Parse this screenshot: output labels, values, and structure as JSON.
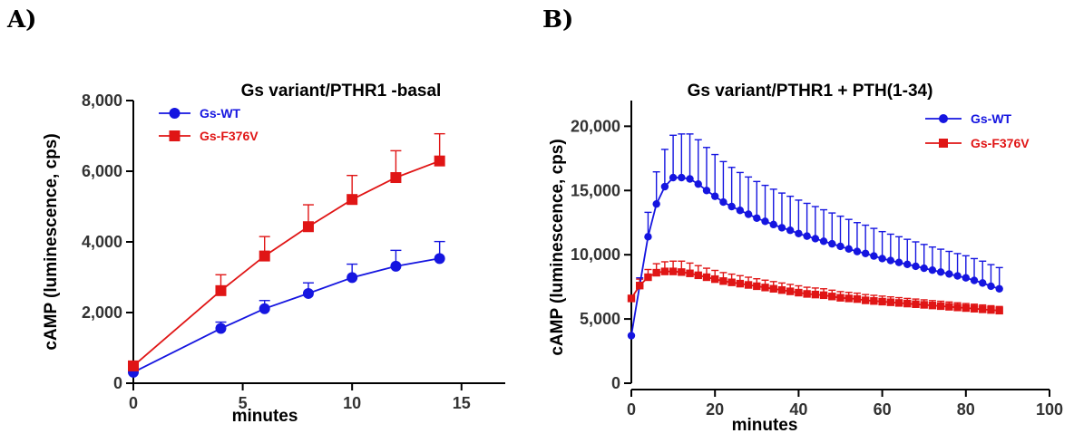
{
  "panels": [
    {
      "label": "A)"
    },
    {
      "label": "B)"
    }
  ],
  "chart_data": [
    {
      "type": "line",
      "title": "Gs variant/PTHR1 -basal",
      "xlabel": "minutes",
      "ylabel": "cAMP (luminescence, cps)",
      "xlim": [
        0,
        17
      ],
      "ylim": [
        0,
        8000
      ],
      "xticks": [
        0,
        5,
        10,
        15
      ],
      "xtick_labels": [
        "0",
        "5",
        "10",
        "15"
      ],
      "yticks": [
        0,
        2000,
        4000,
        6000,
        8000
      ],
      "ytick_labels": [
        "0",
        "2,000",
        "4,000",
        "6,000",
        "8,000"
      ],
      "legend_position": "top-left",
      "grid": false,
      "series": [
        {
          "name": "Gs-WT",
          "color": "#1515e0",
          "marker": "circle",
          "x": [
            0,
            4,
            6,
            8,
            10,
            12,
            14
          ],
          "y": [
            310,
            1550,
            2110,
            2540,
            2990,
            3310,
            3530
          ],
          "err": [
            0,
            180,
            230,
            300,
            380,
            450,
            480
          ]
        },
        {
          "name": "Gs-F376V",
          "color": "#e01515",
          "marker": "square",
          "x": [
            0,
            4,
            6,
            8,
            10,
            12,
            14
          ],
          "y": [
            490,
            2620,
            3600,
            4430,
            5200,
            5820,
            6290
          ],
          "err": [
            0,
            450,
            550,
            620,
            680,
            760,
            770
          ]
        }
      ]
    },
    {
      "type": "line",
      "title": "Gs variant/PTHR1  + PTH(1-34)",
      "xlabel": "minutes",
      "ylabel": "cAMP (luminescence, cps)",
      "xlim": [
        0,
        100
      ],
      "ylim": [
        0,
        22000
      ],
      "xticks": [
        0,
        20,
        40,
        60,
        80,
        100
      ],
      "xtick_labels": [
        "0",
        "20",
        "40",
        "60",
        "80",
        "100"
      ],
      "yticks": [
        0,
        5000,
        10000,
        15000,
        20000
      ],
      "ytick_labels": [
        "0",
        "5,000",
        "10,000",
        "15,000",
        "20,000"
      ],
      "legend_position": "top-right",
      "grid": false,
      "series": [
        {
          "name": "Gs-WT",
          "color": "#1515e0",
          "marker": "circle",
          "x": [
            0,
            2,
            4,
            6,
            8,
            10,
            12,
            14,
            16,
            18,
            20,
            22,
            24,
            26,
            28,
            30,
            32,
            34,
            36,
            38,
            40,
            42,
            44,
            46,
            48,
            50,
            52,
            54,
            56,
            58,
            60,
            62,
            64,
            66,
            68,
            70,
            72,
            74,
            76,
            78,
            80,
            82,
            84,
            86,
            88
          ],
          "y": [
            3700,
            7600,
            11400,
            13950,
            15300,
            16000,
            16000,
            15900,
            15500,
            15000,
            14550,
            14100,
            13750,
            13450,
            13150,
            12850,
            12600,
            12350,
            12100,
            11900,
            11650,
            11450,
            11250,
            11050,
            10850,
            10650,
            10450,
            10250,
            10100,
            9900,
            9700,
            9550,
            9400,
            9250,
            9100,
            8950,
            8800,
            8650,
            8500,
            8350,
            8200,
            8000,
            7800,
            7550,
            7350
          ],
          "err": [
            0,
            600,
            1900,
            2500,
            2900,
            3300,
            3400,
            3500,
            3450,
            3350,
            3250,
            3150,
            3050,
            2950,
            2900,
            2850,
            2800,
            2750,
            2700,
            2650,
            2600,
            2550,
            2500,
            2450,
            2400,
            2350,
            2300,
            2250,
            2200,
            2150,
            2100,
            2050,
            2000,
            1950,
            1900,
            1850,
            1800,
            1780,
            1760,
            1740,
            1720,
            1700,
            1700,
            1680,
            1650
          ]
        },
        {
          "name": "Gs-F376V",
          "color": "#e01515",
          "marker": "square",
          "x": [
            0,
            2,
            4,
            6,
            8,
            10,
            12,
            14,
            16,
            18,
            20,
            22,
            24,
            26,
            28,
            30,
            32,
            34,
            36,
            38,
            40,
            42,
            44,
            46,
            48,
            50,
            52,
            54,
            56,
            58,
            60,
            62,
            64,
            66,
            68,
            70,
            72,
            74,
            76,
            78,
            80,
            82,
            84,
            86,
            88
          ],
          "y": [
            6600,
            7600,
            8250,
            8600,
            8700,
            8700,
            8650,
            8550,
            8400,
            8250,
            8100,
            7950,
            7850,
            7750,
            7650,
            7550,
            7450,
            7350,
            7250,
            7150,
            7050,
            6950,
            6900,
            6850,
            6750,
            6650,
            6600,
            6550,
            6450,
            6400,
            6350,
            6300,
            6250,
            6200,
            6150,
            6100,
            6050,
            6000,
            5950,
            5900,
            5850,
            5800,
            5750,
            5700,
            5650
          ],
          "err": [
            0,
            500,
            600,
            700,
            750,
            800,
            850,
            800,
            750,
            700,
            680,
            660,
            640,
            620,
            600,
            580,
            570,
            560,
            550,
            540,
            530,
            520,
            510,
            500,
            490,
            480,
            470,
            460,
            450,
            440,
            430,
            420,
            410,
            400,
            400,
            390,
            380,
            380,
            370,
            360,
            350,
            350,
            340,
            330,
            320
          ]
        }
      ]
    }
  ]
}
